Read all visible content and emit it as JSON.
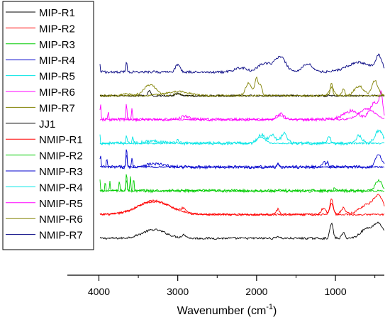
{
  "chart_data": {
    "type": "line",
    "title": "",
    "xlabel": "Wavenumber (cm",
    "xlabel_sup": "-1",
    "xlabel_close": ")",
    "ylabel": "",
    "x_reversed": true,
    "xlim": [
      4400,
      380
    ],
    "x_ticks": [
      4000,
      3000,
      2000,
      1000
    ],
    "x_tick_labels": [
      "4000",
      "3000",
      "2000",
      "1000"
    ],
    "legend_position": "left",
    "series": [
      {
        "name": "MIP-R1",
        "color": "#000000",
        "offset": 0.0,
        "values": [],
        "noise": 1,
        "peaks": [
          [
            3300,
            8,
            150
          ],
          [
            2920,
            3,
            30
          ],
          [
            1730,
            2,
            20
          ],
          [
            1050,
            14,
            20
          ],
          [
            900,
            5,
            20
          ],
          [
            600,
            9,
            80
          ],
          [
            450,
            13,
            60
          ]
        ]
      },
      {
        "name": "MIP-R2",
        "color": "#ff0000",
        "offset": 1.0,
        "values": [],
        "noise": 1,
        "peaks": [
          [
            3300,
            13,
            200
          ],
          [
            2920,
            4,
            40
          ],
          [
            1730,
            5,
            20
          ],
          [
            1150,
            6,
            30
          ],
          [
            1050,
            15,
            20
          ],
          [
            900,
            6,
            30
          ],
          [
            600,
            9,
            100
          ],
          [
            450,
            15,
            60
          ]
        ]
      },
      {
        "name": "MIP-R3",
        "color": "#00cc00",
        "offset": 2.0,
        "values": [],
        "noise": 1.5,
        "peaks": [
          [
            3990,
            12,
            6
          ],
          [
            3920,
            8,
            6
          ],
          [
            3860,
            9,
            6
          ],
          [
            3740,
            10,
            6
          ],
          [
            3650,
            18,
            6
          ],
          [
            3600,
            14,
            6
          ],
          [
            3560,
            12,
            6
          ],
          [
            1000,
            2,
            30
          ],
          [
            450,
            10,
            40
          ]
        ]
      },
      {
        "name": "MIP-R4",
        "color": "#0000cc",
        "offset": 3.0,
        "values": [],
        "noise": 1.5,
        "peaks": [
          [
            3980,
            12,
            6
          ],
          [
            3900,
            8,
            6
          ],
          [
            3650,
            20,
            6
          ],
          [
            3580,
            10,
            6
          ],
          [
            3300,
            3,
            120
          ],
          [
            1730,
            5,
            10
          ],
          [
            1150,
            6,
            15
          ],
          [
            1100,
            4,
            15
          ],
          [
            450,
            12,
            40
          ]
        ]
      },
      {
        "name": "MIP-R5",
        "color": "#00e5e5",
        "offset": 4.0,
        "values": [],
        "noise": 1.5,
        "peaks": [
          [
            3990,
            9,
            6
          ],
          [
            3650,
            10,
            6
          ],
          [
            3570,
            8,
            6
          ],
          [
            3300,
            2,
            120
          ],
          [
            3000,
            3,
            20
          ],
          [
            1940,
            8,
            50
          ],
          [
            1800,
            8,
            40
          ],
          [
            1650,
            9,
            40
          ],
          [
            1080,
            6,
            20
          ],
          [
            700,
            7,
            40
          ],
          [
            450,
            12,
            50
          ]
        ]
      },
      {
        "name": "MIP-R6",
        "color": "#ff00ff",
        "offset": 5.0,
        "values": [],
        "noise": 1.5,
        "peaks": [
          [
            3980,
            14,
            6
          ],
          [
            3880,
            8,
            6
          ],
          [
            3650,
            16,
            6
          ],
          [
            3580,
            10,
            6
          ],
          [
            2900,
            3,
            60
          ],
          [
            1700,
            6,
            40
          ],
          [
            800,
            8,
            100
          ],
          [
            500,
            16,
            60
          ],
          [
            420,
            20,
            20
          ]
        ]
      },
      {
        "name": "MIP-R7",
        "color": "#808000",
        "offset": 6.0,
        "values": [],
        "noise": 1,
        "peaks": [
          [
            3650,
            2,
            50
          ],
          [
            3350,
            10,
            80
          ],
          [
            3000,
            2,
            40
          ],
          [
            2100,
            12,
            40
          ],
          [
            2000,
            16,
            20
          ],
          [
            1950,
            10,
            20
          ],
          [
            1050,
            12,
            15
          ],
          [
            900,
            6,
            20
          ],
          [
            700,
            9,
            60
          ],
          [
            500,
            14,
            40
          ]
        ]
      },
      {
        "name": "JJ1",
        "color": "#000000",
        "offset": 6.0,
        "values": [],
        "noise": 0.8,
        "peaks": [
          [
            3360,
            5,
            15
          ],
          [
            3000,
            2,
            30
          ]
        ]
      },
      {
        "name": "NMIP-R1",
        "color": "#ff0000",
        "offset": 1.0,
        "values": [],
        "noise": 0.8,
        "peaks": [
          [
            3300,
            12,
            220
          ],
          [
            1050,
            10,
            25
          ]
        ]
      },
      {
        "name": "NMIP-R2",
        "color": "#00cc00",
        "offset": 2.0,
        "values": [],
        "noise": 0.8,
        "peaks": [
          [
            3650,
            10,
            8
          ]
        ]
      },
      {
        "name": "NMIP-R3",
        "color": "#0000cc",
        "offset": 3.0,
        "values": [],
        "noise": 0.8,
        "peaks": [
          [
            3650,
            12,
            8
          ],
          [
            1730,
            3,
            15
          ]
        ]
      },
      {
        "name": "NMIP-R4",
        "color": "#00e5e5",
        "offset": 4.0,
        "values": [],
        "noise": 0.8,
        "peaks": [
          [
            1940,
            6,
            50
          ]
        ]
      },
      {
        "name": "NMIP-R5",
        "color": "#ff00ff",
        "offset": 5.0,
        "values": [],
        "noise": 0.8,
        "peaks": [
          [
            1700,
            4,
            40
          ],
          [
            600,
            10,
            100
          ]
        ]
      },
      {
        "name": "NMIP-R6",
        "color": "#808000",
        "offset": 6.0,
        "values": [],
        "noise": 0.8,
        "peaks": [
          [
            3000,
            4,
            150
          ],
          [
            1050,
            8,
            30
          ]
        ]
      },
      {
        "name": "NMIP-R7",
        "color": "#000080",
        "offset": 7.0,
        "values": [],
        "noise": 1.2,
        "peaks": [
          [
            3990,
            10,
            6
          ],
          [
            3650,
            10,
            8
          ],
          [
            3000,
            7,
            30
          ],
          [
            2200,
            4,
            80
          ],
          [
            1900,
            8,
            80
          ],
          [
            1700,
            14,
            70
          ],
          [
            1350,
            8,
            60
          ],
          [
            700,
            9,
            150
          ],
          [
            450,
            14,
            40
          ]
        ]
      }
    ]
  }
}
